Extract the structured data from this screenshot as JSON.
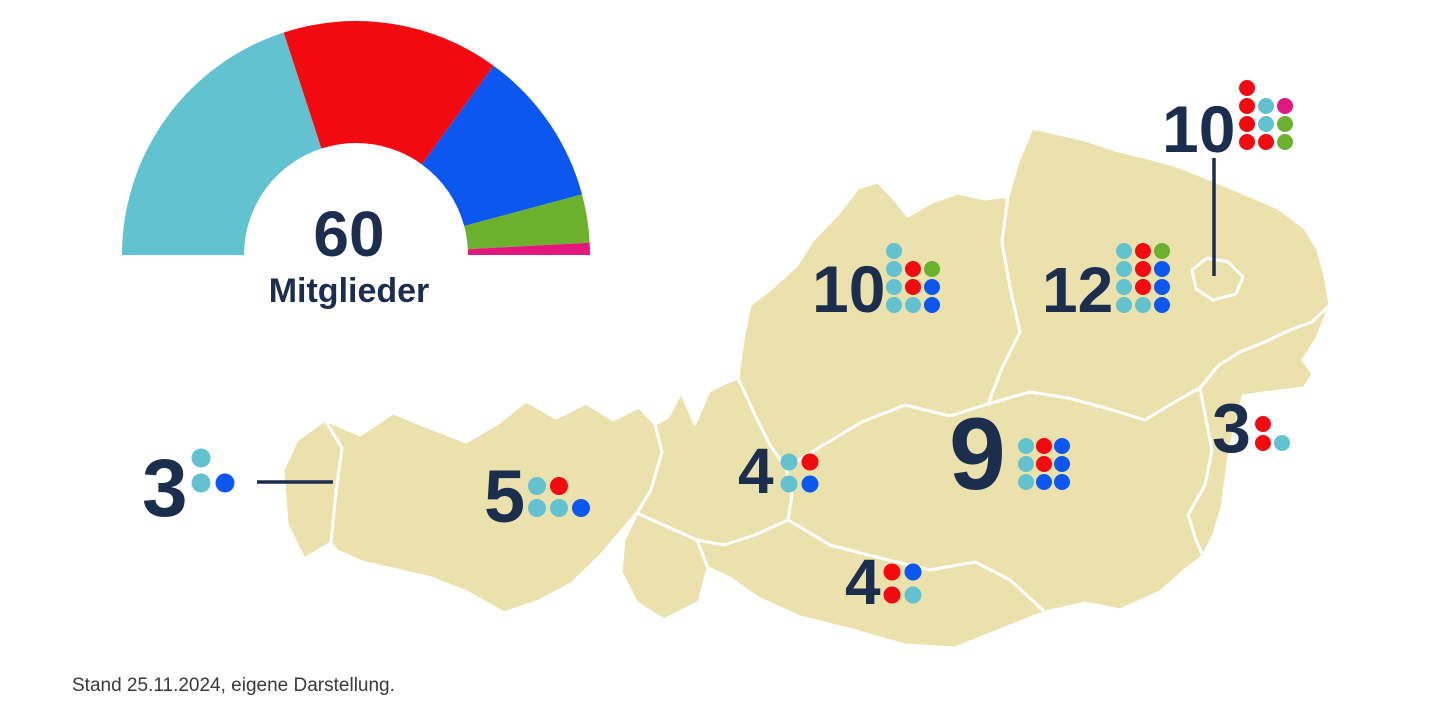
{
  "colors": {
    "teal": "#62C2CF",
    "red": "#F30A10",
    "blue": "#0B57F0",
    "green": "#6BB12E",
    "pink": "#E2187D",
    "navy": "#1C2E4E",
    "map_fill": "#EAE1AD",
    "map_border": "#FFFFFF",
    "source_text": "#3A3A3A"
  },
  "chart_data": {
    "type": "donut-semicircle",
    "total_members": 60,
    "center_label": "60",
    "center_sublabel": "Mitglieder",
    "legend_position": "none",
    "segments": [
      {
        "color_name": "teal",
        "value": 24
      },
      {
        "color_name": "red",
        "value": 18
      },
      {
        "color_name": "blue",
        "value": 13
      },
      {
        "color_name": "green",
        "value": 4
      },
      {
        "color_name": "pink",
        "value": 1
      }
    ],
    "regions": [
      {
        "id": "vorarlberg",
        "count": "3",
        "dots": [
          [
            "teal"
          ],
          [
            "teal",
            "blue"
          ]
        ]
      },
      {
        "id": "tirol",
        "count": "5",
        "dots": [
          [
            "teal",
            "red"
          ],
          [
            "teal",
            "teal",
            "blue"
          ]
        ]
      },
      {
        "id": "salzburg",
        "count": "4",
        "dots": [
          [
            "teal",
            "red"
          ],
          [
            "teal",
            "blue"
          ]
        ]
      },
      {
        "id": "oberoesterreich",
        "count": "10",
        "dots": [
          [
            "teal"
          ],
          [
            "teal",
            "red",
            "green"
          ],
          [
            "teal",
            "red",
            "blue"
          ],
          [
            "teal",
            "teal",
            "blue"
          ]
        ]
      },
      {
        "id": "niederoesterreich",
        "count": "12",
        "dots": [
          [
            "teal",
            "red",
            "green"
          ],
          [
            "teal",
            "red",
            "blue"
          ],
          [
            "teal",
            "red",
            "blue"
          ],
          [
            "teal",
            "teal",
            "blue"
          ]
        ]
      },
      {
        "id": "wien",
        "count": "10",
        "dots": [
          [
            "red"
          ],
          [
            "red",
            "teal",
            "pink"
          ],
          [
            "red",
            "teal",
            "green"
          ],
          [
            "red",
            "red",
            "green"
          ]
        ]
      },
      {
        "id": "steiermark",
        "count": "9",
        "dots": [
          [
            "teal",
            "red",
            "blue"
          ],
          [
            "teal",
            "red",
            "blue"
          ],
          [
            "teal",
            "blue",
            "blue"
          ]
        ]
      },
      {
        "id": "kaernten",
        "count": "4",
        "dots": [
          [
            "red",
            "blue"
          ],
          [
            "red",
            "teal"
          ]
        ]
      },
      {
        "id": "burgenland",
        "count": "3",
        "dots": [
          [
            "red"
          ],
          [
            "red",
            "teal"
          ]
        ]
      }
    ]
  },
  "footer": {
    "text": "Stand 25.11.2024, eigene Darstellung."
  }
}
